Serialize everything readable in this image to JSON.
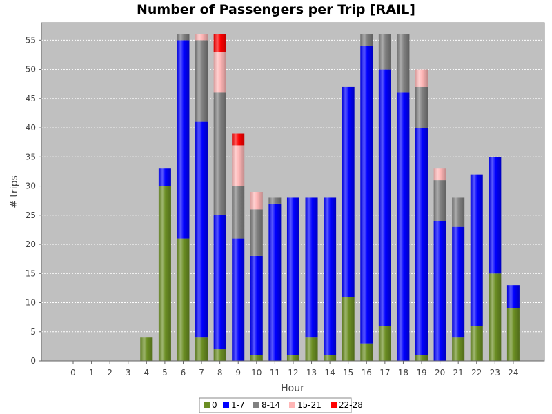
{
  "chart_data": {
    "type": "bar",
    "stacked": true,
    "title": "Number of Passengers per Trip [RAIL]",
    "xlabel": "Hour",
    "ylabel": "# trips",
    "ylim": [
      0,
      58
    ],
    "yticks": [
      0,
      5,
      10,
      15,
      20,
      25,
      30,
      35,
      40,
      45,
      50,
      55
    ],
    "grid": true,
    "legend_position": "bottom",
    "categories": [
      "0",
      "1",
      "2",
      "3",
      "4",
      "5",
      "6",
      "7",
      "8",
      "9",
      "10",
      "11",
      "12",
      "13",
      "14",
      "15",
      "16",
      "17",
      "18",
      "19",
      "20",
      "21",
      "22",
      "23",
      "24"
    ],
    "series": [
      {
        "name": "0",
        "color": "#6b8e23",
        "values": [
          0,
          0,
          0,
          0,
          4,
          30,
          21,
          4,
          2,
          0,
          1,
          0,
          1,
          4,
          1,
          11,
          3,
          6,
          0,
          1,
          0,
          4,
          6,
          15,
          9
        ]
      },
      {
        "name": "1-7",
        "color": "#0000ff",
        "values": [
          0,
          0,
          0,
          0,
          0,
          3,
          34,
          37,
          23,
          21,
          17,
          27,
          27,
          24,
          27,
          36,
          51,
          44,
          46,
          39,
          24,
          19,
          26,
          20,
          4
        ]
      },
      {
        "name": "8-14",
        "color": "#808080",
        "values": [
          0,
          0,
          0,
          0,
          0,
          0,
          1,
          14,
          21,
          9,
          8,
          1,
          0,
          0,
          0,
          0,
          2,
          6,
          10,
          7,
          7,
          5,
          0,
          0,
          0
        ]
      },
      {
        "name": "15-21",
        "color": "#ffb6b6",
        "values": [
          0,
          0,
          0,
          0,
          0,
          0,
          0,
          1,
          7,
          7,
          3,
          0,
          0,
          0,
          0,
          0,
          0,
          0,
          0,
          3,
          2,
          0,
          0,
          0,
          0
        ]
      },
      {
        "name": "22-28",
        "color": "#ff0000",
        "values": [
          0,
          0,
          0,
          0,
          0,
          0,
          0,
          0,
          3,
          2,
          0,
          0,
          0,
          0,
          0,
          0,
          0,
          0,
          0,
          0,
          0,
          0,
          0,
          0,
          0
        ]
      }
    ]
  }
}
